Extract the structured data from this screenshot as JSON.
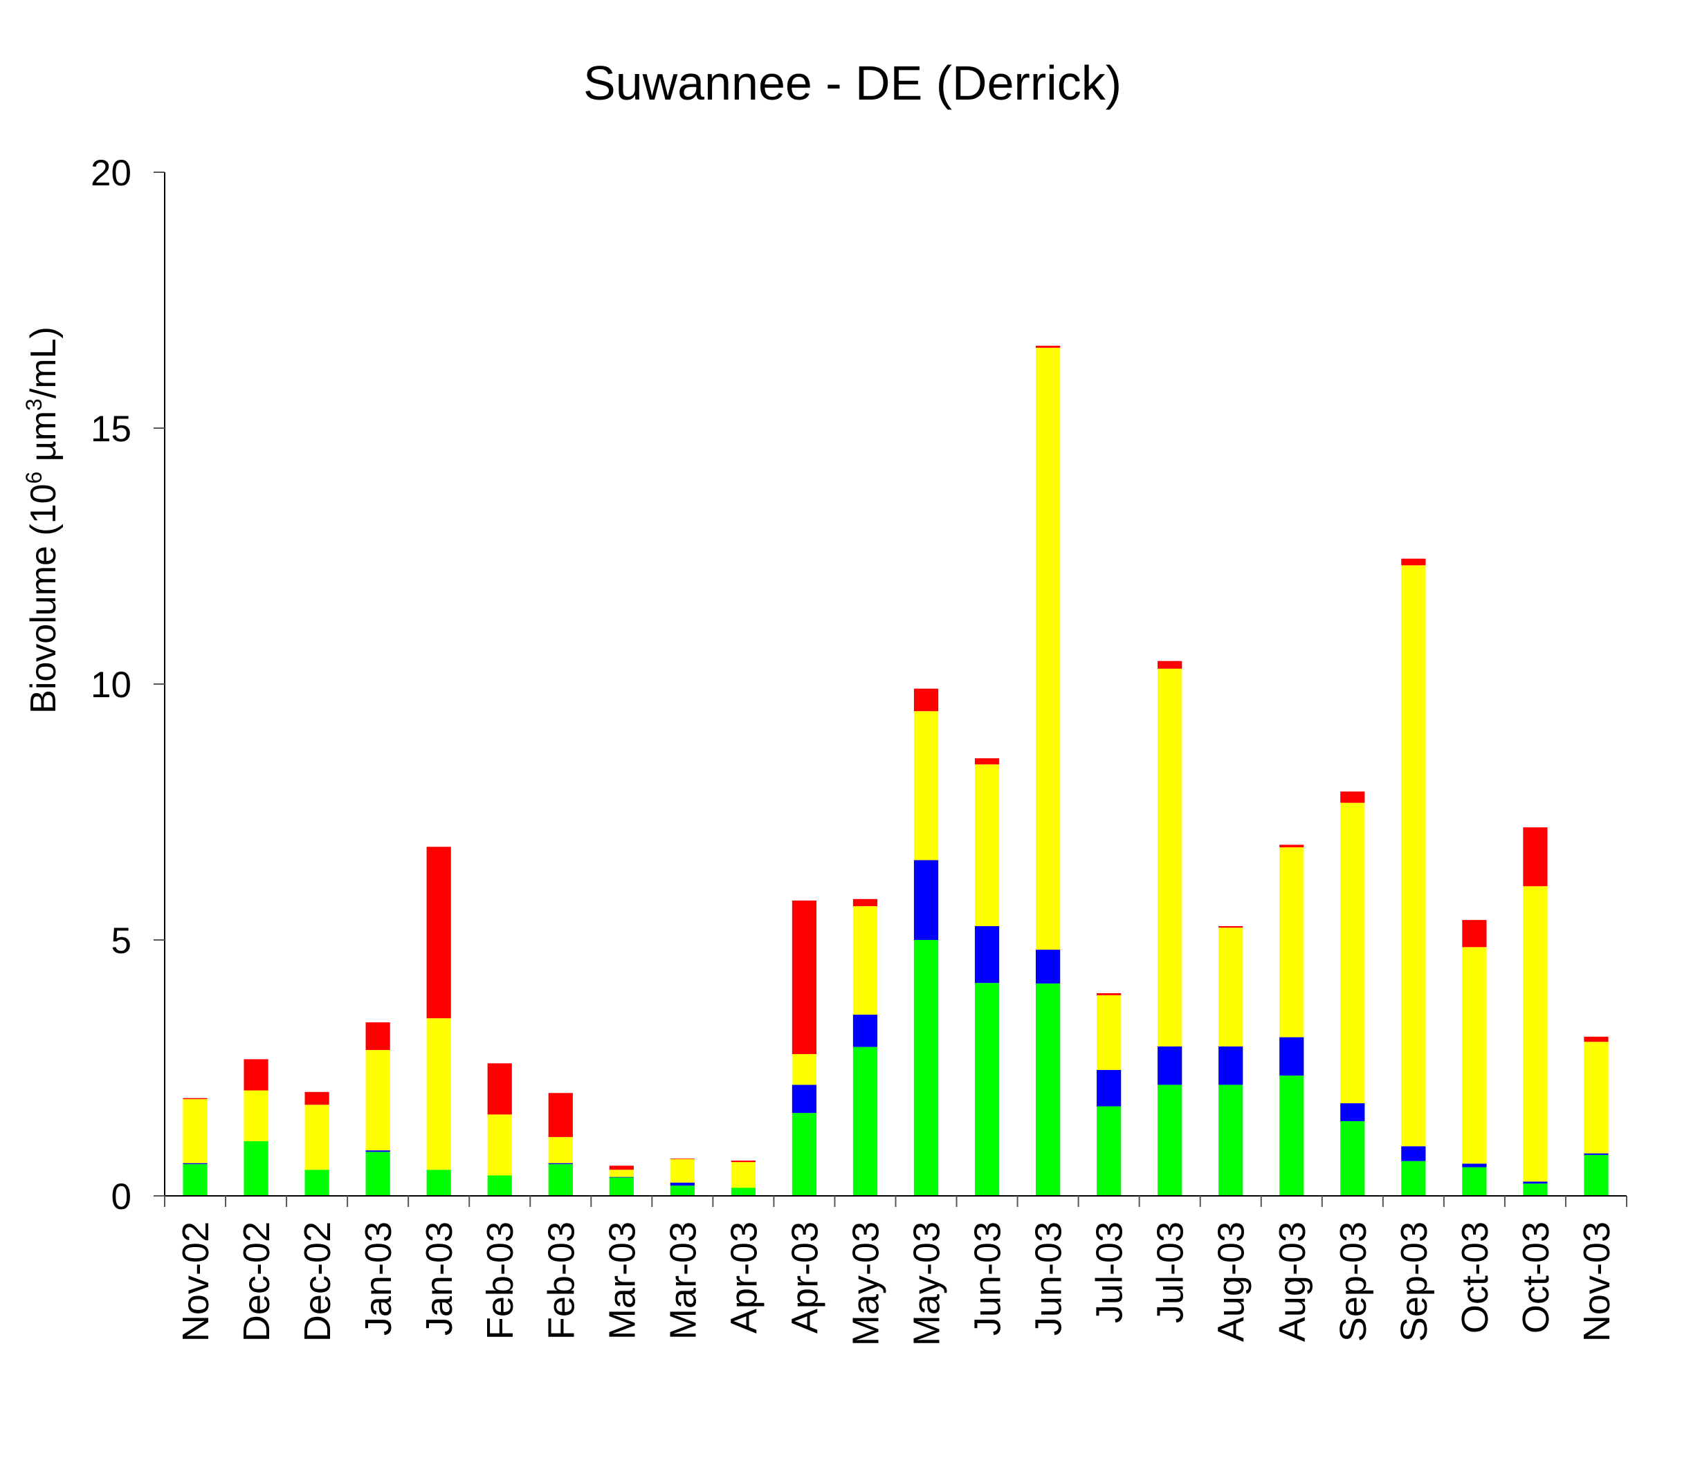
{
  "chart_data": {
    "type": "bar",
    "stacked": true,
    "title": "Suwannee - DE (Derrick)",
    "xlabel": "",
    "ylabel": "Biovolume (10",
    "ylabel_sup1": "6",
    "ylabel_mid": " µm",
    "ylabel_sup2": "3",
    "ylabel_end": "/mL)",
    "ylim": [
      0,
      20
    ],
    "yticks": [
      0,
      5,
      10,
      15,
      20
    ],
    "ytick_labels": [
      "0",
      "5",
      "10",
      "15",
      "20"
    ],
    "grid": false,
    "legend": "none",
    "categories": [
      "Nov-02",
      "Dec-02",
      "Dec-02",
      "Jan-03",
      "Jan-03",
      "Feb-03",
      "Feb-03",
      "Mar-03",
      "Mar-03",
      "Apr-03",
      "Apr-03",
      "May-03",
      "May-03",
      "Jun-03",
      "Jun-03",
      "Jul-03",
      "Jul-03",
      "Aug-03",
      "Aug-03",
      "Sep-03",
      "Sep-03",
      "Oct-03",
      "Oct-03",
      "Nov-03"
    ],
    "series": [
      {
        "color": "#00ff00",
        "values": [
          0.62,
          1.07,
          0.51,
          0.86,
          0.51,
          0.4,
          0.62,
          0.36,
          0.2,
          0.16,
          1.62,
          2.91,
          5.0,
          4.16,
          4.15,
          1.75,
          2.17,
          2.17,
          2.35,
          1.46,
          0.68,
          0.56,
          0.24,
          0.8
        ]
      },
      {
        "color": "#0000ff",
        "values": [
          0.02,
          0.0,
          0.0,
          0.03,
          0.0,
          0.0,
          0.02,
          0.01,
          0.06,
          0.0,
          0.55,
          0.63,
          1.56,
          1.11,
          0.66,
          0.71,
          0.75,
          0.75,
          0.75,
          0.35,
          0.29,
          0.07,
          0.04,
          0.03
        ]
      },
      {
        "color": "#ffff00",
        "values": [
          1.25,
          0.99,
          1.27,
          1.96,
          2.96,
          1.19,
          0.51,
          0.14,
          0.46,
          0.5,
          0.6,
          2.12,
          2.91,
          3.16,
          11.76,
          1.46,
          7.38,
          2.32,
          3.71,
          5.87,
          11.35,
          4.23,
          5.77,
          2.18
        ]
      },
      {
        "color": "#ff0000",
        "values": [
          0.02,
          0.61,
          0.25,
          0.54,
          3.35,
          1.0,
          0.86,
          0.08,
          0.01,
          0.03,
          3.0,
          0.14,
          0.44,
          0.12,
          0.04,
          0.04,
          0.15,
          0.03,
          0.05,
          0.22,
          0.13,
          0.53,
          1.15,
          0.1
        ]
      }
    ]
  }
}
